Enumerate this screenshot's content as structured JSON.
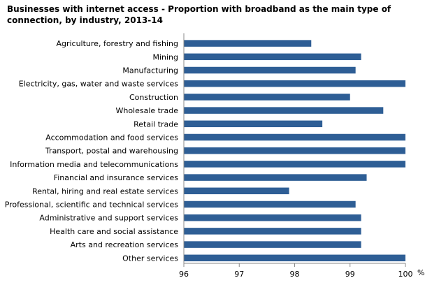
{
  "chart_data": {
    "type": "bar",
    "orientation": "horizontal",
    "title": "Businesses with internet access - Proportion with broadband as the main type of connection, by industry, 2013-14",
    "categories": [
      "Agriculture, forestry and fishing",
      "Mining",
      "Manufacturing",
      "Electricity, gas, water and waste services",
      "Construction",
      "Wholesale trade",
      "Retail trade",
      "Accommodation and food services",
      "Transport, postal and warehousing",
      "Information media and telecommunications",
      "Financial and insurance services",
      "Rental, hiring and real estate services",
      "Professional, scientific and technical services",
      "Administrative and support services",
      "Health care and social assistance",
      "Arts and recreation services",
      "Other services"
    ],
    "values": [
      98.3,
      99.2,
      99.1,
      100,
      99.0,
      99.6,
      98.5,
      100,
      100,
      100,
      99.3,
      97.9,
      99.1,
      99.2,
      99.2,
      99.2,
      100
    ],
    "xlim": [
      96,
      100
    ],
    "xticks": [
      "96",
      "97",
      "98",
      "99",
      "100"
    ],
    "xlabel": "%",
    "grid": false,
    "bar_color": "#2E5E95"
  }
}
